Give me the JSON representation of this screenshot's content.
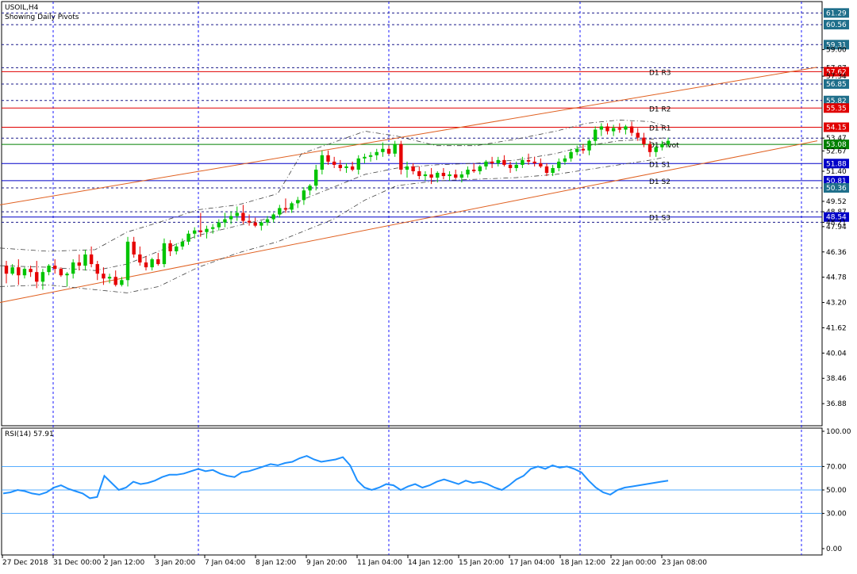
{
  "header": {
    "symbol_label": "USOIL,H4",
    "subtitle": "Showing Daily Pivots"
  },
  "rsi_panel": {
    "label": "RSI(14) 57.91",
    "levels": [
      30,
      50,
      70
    ],
    "range": [
      0,
      100
    ],
    "ticks": [
      "100.00",
      "70.00",
      "50.00",
      "30.00",
      "0.00"
    ]
  },
  "price_axis": {
    "ticks": [
      "61.29",
      "60.56",
      "59.31",
      "59.00",
      "57.87",
      "57.62",
      "57.34",
      "56.85",
      "55.82",
      "55.35",
      "54.15",
      "53.47",
      "53.08",
      "52.67",
      "51.88",
      "51.40",
      "50.81",
      "50.36",
      "49.52",
      "48.87",
      "48.54",
      "48.21",
      "47.94",
      "46.36",
      "44.78",
      "43.20",
      "41.62",
      "40.04",
      "38.46",
      "36.88"
    ]
  },
  "colors": {
    "bull": "#00c400",
    "bear": "#e60000",
    "resistance": "#e00000",
    "support": "#0000c8",
    "pivot": "#008000",
    "channel": "#e06020",
    "rsi": "#1e90ff",
    "grid": "#1a1aff",
    "tag_blue": "#1f6f8b"
  },
  "chart_data": {
    "type": "candlestick",
    "title": "USOIL,H4",
    "subtitle": "Showing Daily Pivots",
    "ylim": [
      35.5,
      62.0
    ],
    "x_labels": [
      "27 Dec 2018",
      "31 Dec 00:00",
      "2 Jan 12:00",
      "3 Jan 20:00",
      "7 Jan 04:00",
      "8 Jan 12:00",
      "9 Jan 20:00",
      "11 Jan 04:00",
      "14 Jan 12:00",
      "15 Jan 20:00",
      "17 Jan 04:00",
      "18 Jan 12:00",
      "22 Jan 00:00",
      "23 Jan 08:00"
    ],
    "pivots": [
      {
        "name": "D1 R3",
        "value": 57.62,
        "kind": "resistance"
      },
      {
        "name": "D1 R2",
        "value": 55.35,
        "kind": "resistance"
      },
      {
        "name": "D1 R1",
        "value": 54.15,
        "kind": "resistance"
      },
      {
        "name": "D1 Pivot",
        "value": 53.08,
        "kind": "pivot"
      },
      {
        "name": "D1 S1",
        "value": 51.88,
        "kind": "support"
      },
      {
        "name": "D1 S2",
        "value": 50.81,
        "kind": "support"
      },
      {
        "name": "D1 S3",
        "value": 48.54,
        "kind": "support"
      }
    ],
    "dashed_levels": [
      61.29,
      60.56,
      59.31,
      57.87,
      56.85,
      55.82,
      53.47,
      50.36,
      48.87,
      48.21
    ],
    "channel": {
      "upper": [
        [
          0,
          49.3
        ],
        [
          1030,
          57.9
        ]
      ],
      "lower": [
        [
          0,
          43.2
        ],
        [
          1030,
          53.3
        ]
      ]
    },
    "candles": [
      [
        45.5,
        45.8,
        44.4,
        45.0
      ],
      [
        45.0,
        45.6,
        44.9,
        45.4
      ],
      [
        45.4,
        45.9,
        44.3,
        44.9
      ],
      [
        44.9,
        45.4,
        44.7,
        45.3
      ],
      [
        45.3,
        45.5,
        44.8,
        45.1
      ],
      [
        45.1,
        45.8,
        44.1,
        44.5
      ],
      [
        44.5,
        45.3,
        44.0,
        45.1
      ],
      [
        45.1,
        45.6,
        44.9,
        45.5
      ],
      [
        45.5,
        45.9,
        45.0,
        45.3
      ],
      [
        45.3,
        45.4,
        44.8,
        44.9
      ],
      [
        44.9,
        45.1,
        44.2,
        45.0
      ],
      [
        45.0,
        45.9,
        44.7,
        45.7
      ],
      [
        45.7,
        46.2,
        45.2,
        45.5
      ],
      [
        45.5,
        46.5,
        45.2,
        46.2
      ],
      [
        46.2,
        46.7,
        45.4,
        45.6
      ],
      [
        45.6,
        45.8,
        44.6,
        45.0
      ],
      [
        45.0,
        45.4,
        44.3,
        44.7
      ],
      [
        44.7,
        45.0,
        44.4,
        44.8
      ],
      [
        44.8,
        45.2,
        44.2,
        44.3
      ],
      [
        44.3,
        44.8,
        44.2,
        44.6
      ],
      [
        44.6,
        47.3,
        44.2,
        47.0
      ],
      [
        47.0,
        47.3,
        46.0,
        46.2
      ],
      [
        46.2,
        46.7,
        45.5,
        45.7
      ],
      [
        45.7,
        46.1,
        45.2,
        45.4
      ],
      [
        45.4,
        46.0,
        45.2,
        45.9
      ],
      [
        45.9,
        46.3,
        45.5,
        45.6
      ],
      [
        45.6,
        47.2,
        45.4,
        46.9
      ],
      [
        46.9,
        47.1,
        46.1,
        46.4
      ],
      [
        46.4,
        46.9,
        46.2,
        46.7
      ],
      [
        46.7,
        47.2,
        46.5,
        47.0
      ],
      [
        47.0,
        47.7,
        46.8,
        47.5
      ],
      [
        47.5,
        47.9,
        47.2,
        47.7
      ],
      [
        47.7,
        48.8,
        47.3,
        47.6
      ],
      [
        47.6,
        48.0,
        47.2,
        47.8
      ],
      [
        47.8,
        48.1,
        47.5,
        47.9
      ],
      [
        47.9,
        48.4,
        47.7,
        48.2
      ],
      [
        48.2,
        48.8,
        47.9,
        48.4
      ],
      [
        48.4,
        48.9,
        48.1,
        48.6
      ],
      [
        48.6,
        49.2,
        48.3,
        48.8
      ],
      [
        48.8,
        49.3,
        48.1,
        48.3
      ],
      [
        48.3,
        48.7,
        48.0,
        48.2
      ],
      [
        48.2,
        48.5,
        47.9,
        48.0
      ],
      [
        48.0,
        48.3,
        47.7,
        48.2
      ],
      [
        48.2,
        48.6,
        48.0,
        48.4
      ],
      [
        48.4,
        48.8,
        48.2,
        48.7
      ],
      [
        48.7,
        49.3,
        48.5,
        49.1
      ],
      [
        49.1,
        49.7,
        48.8,
        49.0
      ],
      [
        49.0,
        49.5,
        48.8,
        49.4
      ],
      [
        49.4,
        49.8,
        49.1,
        49.6
      ],
      [
        49.6,
        50.4,
        49.3,
        50.2
      ],
      [
        50.2,
        50.6,
        49.9,
        50.5
      ],
      [
        50.5,
        51.8,
        50.2,
        51.5
      ],
      [
        51.5,
        52.7,
        51.2,
        52.4
      ],
      [
        52.4,
        52.7,
        51.8,
        52.0
      ],
      [
        52.0,
        52.3,
        51.6,
        51.8
      ],
      [
        51.8,
        52.1,
        51.4,
        51.6
      ],
      [
        51.6,
        51.9,
        51.3,
        51.7
      ],
      [
        51.7,
        52.0,
        51.4,
        51.5
      ],
      [
        51.5,
        52.4,
        51.2,
        52.2
      ],
      [
        52.2,
        52.5,
        51.9,
        52.3
      ],
      [
        52.3,
        52.6,
        52.0,
        52.4
      ],
      [
        52.4,
        52.8,
        52.1,
        52.6
      ],
      [
        52.6,
        53.2,
        52.3,
        52.8
      ],
      [
        52.8,
        53.0,
        52.4,
        52.5
      ],
      [
        52.5,
        53.3,
        52.3,
        53.1
      ],
      [
        53.1,
        53.3,
        51.2,
        51.5
      ],
      [
        51.5,
        52.0,
        51.0,
        51.7
      ],
      [
        51.7,
        51.9,
        51.2,
        51.4
      ],
      [
        51.4,
        51.7,
        50.9,
        51.1
      ],
      [
        51.1,
        51.4,
        50.8,
        51.2
      ],
      [
        51.2,
        51.6,
        50.6,
        51.0
      ],
      [
        51.0,
        51.4,
        50.7,
        51.3
      ],
      [
        51.3,
        51.6,
        50.9,
        51.1
      ],
      [
        51.1,
        51.4,
        50.8,
        51.2
      ],
      [
        51.2,
        51.5,
        50.9,
        51.0
      ],
      [
        51.0,
        51.4,
        50.7,
        51.2
      ],
      [
        51.2,
        51.7,
        51.0,
        51.5
      ],
      [
        51.5,
        51.9,
        51.3,
        51.4
      ],
      [
        51.4,
        51.8,
        51.2,
        51.7
      ],
      [
        51.7,
        52.1,
        51.5,
        52.0
      ],
      [
        52.0,
        52.3,
        51.6,
        51.9
      ],
      [
        51.9,
        52.3,
        51.7,
        52.1
      ],
      [
        52.1,
        52.4,
        51.7,
        51.8
      ],
      [
        51.8,
        52.0,
        51.3,
        51.6
      ],
      [
        51.6,
        52.0,
        51.4,
        51.8
      ],
      [
        51.8,
        52.3,
        51.6,
        52.1
      ],
      [
        52.1,
        52.5,
        51.8,
        52.0
      ],
      [
        52.0,
        52.3,
        51.7,
        51.9
      ],
      [
        51.9,
        52.2,
        51.6,
        51.7
      ],
      [
        51.7,
        51.9,
        51.1,
        51.3
      ],
      [
        51.3,
        51.8,
        51.1,
        51.6
      ],
      [
        51.6,
        52.2,
        51.4,
        52.0
      ],
      [
        52.0,
        52.4,
        51.8,
        52.2
      ],
      [
        52.2,
        52.8,
        52.0,
        52.6
      ],
      [
        52.6,
        53.0,
        52.4,
        52.8
      ],
      [
        52.8,
        53.1,
        52.5,
        52.7
      ],
      [
        52.7,
        53.4,
        52.4,
        53.3
      ],
      [
        53.3,
        54.2,
        53.0,
        54.0
      ],
      [
        54.0,
        54.4,
        53.6,
        54.2
      ],
      [
        54.2,
        54.4,
        53.7,
        53.9
      ],
      [
        53.9,
        54.3,
        53.6,
        54.1
      ],
      [
        54.1,
        54.4,
        53.8,
        54.0
      ],
      [
        54.0,
        54.3,
        53.7,
        54.2
      ],
      [
        54.2,
        54.5,
        53.6,
        53.8
      ],
      [
        53.8,
        54.1,
        53.3,
        53.5
      ],
      [
        53.5,
        53.8,
        52.9,
        53.1
      ],
      [
        53.1,
        53.3,
        52.3,
        52.6
      ],
      [
        52.6,
        53.0,
        52.3,
        52.9
      ],
      [
        52.9,
        53.3,
        52.7,
        53.1
      ],
      [
        53.1,
        53.5,
        52.9,
        53.3
      ]
    ],
    "bands": {
      "upper": [
        [
          0,
          46.6
        ],
        [
          60,
          46.4
        ],
        [
          120,
          46.5
        ],
        [
          160,
          47.6
        ],
        [
          200,
          48.2
        ],
        [
          250,
          49.0
        ],
        [
          300,
          49.3
        ],
        [
          350,
          50.0
        ],
        [
          380,
          52.5
        ],
        [
          420,
          53.2
        ],
        [
          460,
          53.9
        ],
        [
          500,
          53.6
        ],
        [
          550,
          53.0
        ],
        [
          600,
          53.0
        ],
        [
          650,
          53.4
        ],
        [
          700,
          53.9
        ],
        [
          740,
          54.4
        ],
        [
          780,
          54.6
        ],
        [
          820,
          54.5
        ],
        [
          840,
          54.2
        ]
      ],
      "middle": [
        [
          0,
          45.5
        ],
        [
          60,
          45.4
        ],
        [
          120,
          45.2
        ],
        [
          160,
          45.6
        ],
        [
          200,
          46.4
        ],
        [
          250,
          47.4
        ],
        [
          300,
          48.0
        ],
        [
          350,
          48.6
        ],
        [
          380,
          49.6
        ],
        [
          420,
          50.4
        ],
        [
          460,
          51.2
        ],
        [
          500,
          51.6
        ],
        [
          550,
          51.8
        ],
        [
          600,
          51.9
        ],
        [
          650,
          52.1
        ],
        [
          700,
          52.5
        ],
        [
          740,
          53.0
        ],
        [
          780,
          53.3
        ],
        [
          820,
          53.4
        ],
        [
          840,
          53.5
        ]
      ],
      "lower": [
        [
          0,
          44.2
        ],
        [
          60,
          44.3
        ],
        [
          120,
          44.0
        ],
        [
          160,
          43.8
        ],
        [
          200,
          44.2
        ],
        [
          250,
          45.4
        ],
        [
          300,
          46.3
        ],
        [
          350,
          47.0
        ],
        [
          380,
          47.6
        ],
        [
          420,
          48.4
        ],
        [
          460,
          49.6
        ],
        [
          500,
          50.5
        ],
        [
          550,
          50.8
        ],
        [
          600,
          50.9
        ],
        [
          650,
          51.0
        ],
        [
          700,
          51.2
        ],
        [
          740,
          51.5
        ],
        [
          780,
          51.8
        ],
        [
          820,
          52.1
        ],
        [
          840,
          52.3
        ]
      ]
    },
    "rsi": {
      "name": "RSI(14)",
      "values": [
        47,
        48,
        50,
        49,
        47,
        46,
        48,
        52,
        54,
        51,
        49,
        47,
        43,
        44,
        62,
        56,
        50,
        52,
        57,
        55,
        56,
        58,
        61,
        63,
        63,
        64,
        66,
        68,
        66,
        67,
        64,
        62,
        61,
        65,
        66,
        68,
        70,
        72,
        71,
        73,
        74,
        77,
        79,
        76,
        74,
        75,
        76,
        78,
        71,
        58,
        52,
        50,
        52,
        55,
        54,
        50,
        53,
        55,
        52,
        54,
        57,
        59,
        57,
        55,
        58,
        56,
        57,
        55,
        52,
        50,
        54,
        59,
        62,
        68,
        70,
        68,
        71,
        69,
        70,
        68,
        65,
        58,
        52,
        48,
        46,
        50,
        52,
        53,
        54,
        55,
        56,
        57,
        58
      ]
    }
  }
}
